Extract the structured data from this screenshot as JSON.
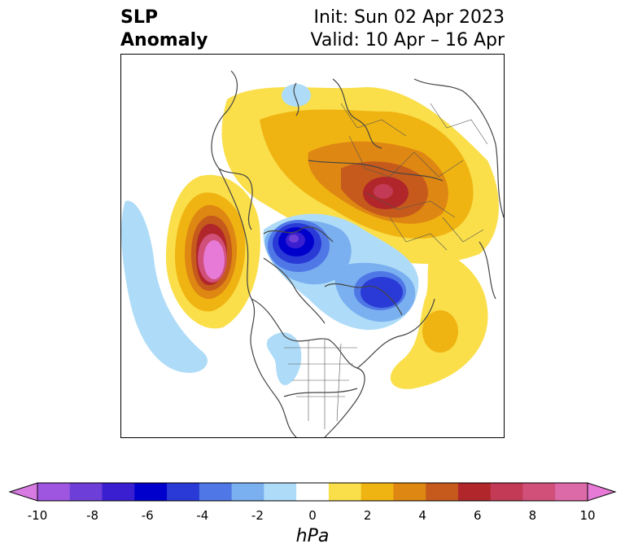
{
  "title": {
    "left_line1": "SLP",
    "left_line2": "Anomaly",
    "right_line1": "Init: Sun 02 Apr 2023",
    "right_line2": "Valid: 10 Apr – 16 Apr"
  },
  "colorbar": {
    "label": "hPa",
    "ticks": [
      "-10",
      "-8",
      "-6",
      "-4",
      "-2",
      "0",
      "2",
      "4",
      "6",
      "8",
      "10"
    ],
    "colors": [
      "#d77be3",
      "#9e55e0",
      "#6e3ed8",
      "#3a1fd1",
      "#0000cc",
      "#2a3ad6",
      "#4f78e6",
      "#7ab0f0",
      "#aedcf8",
      "#ffffff",
      "#fadf4a",
      "#f0b412",
      "#de8712",
      "#c65a1c",
      "#b0262a",
      "#c23a55",
      "#d1507a",
      "#dd6aa8",
      "#e67ad6"
    ]
  },
  "colors": {
    "pos_max": "#e67ad6",
    "neg_max": "#0000cc",
    "land_lines": "#444444"
  }
}
